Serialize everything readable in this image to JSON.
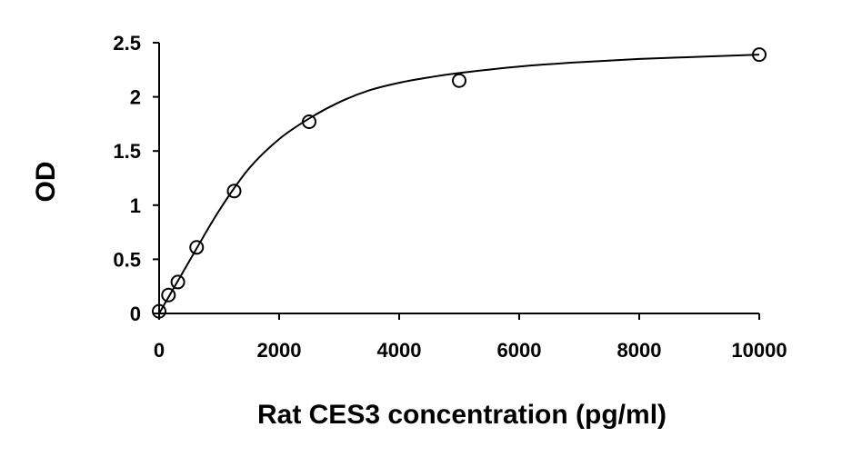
{
  "chart_data": {
    "type": "scatter",
    "title": "",
    "xlabel": "Rat CES3 concentration (pg/ml)",
    "ylabel": "OD",
    "xlim": [
      0,
      10000
    ],
    "ylim": [
      0,
      2.5
    ],
    "x_ticks": [
      "0",
      "2000",
      "4000",
      "6000",
      "8000",
      "10000"
    ],
    "y_ticks": [
      "0",
      "0.5",
      "1",
      "1.5",
      "2",
      "2.5"
    ],
    "grid": false,
    "legend": "none",
    "series": [
      {
        "markers": "open-circle",
        "x": [
          0,
          156,
          312,
          625,
          1250,
          2500,
          5000,
          10000
        ],
        "y": [
          0.02,
          0.17,
          0.29,
          0.61,
          1.13,
          1.77,
          2.15,
          2.39
        ]
      }
    ],
    "fit_curve": {
      "style": "smooth-line",
      "x": [
        0,
        500,
        1000,
        1500,
        2000,
        2500,
        3000,
        3500,
        4000,
        4500,
        5000,
        6000,
        7000,
        8000,
        9000,
        10000
      ],
      "y": [
        0.0,
        0.48,
        0.95,
        1.34,
        1.61,
        1.8,
        1.95,
        2.06,
        2.13,
        2.18,
        2.22,
        2.28,
        2.32,
        2.35,
        2.37,
        2.39
      ]
    },
    "colors": {
      "marker_stroke": "#000000",
      "line": "#000000",
      "axis": "#000000"
    }
  }
}
